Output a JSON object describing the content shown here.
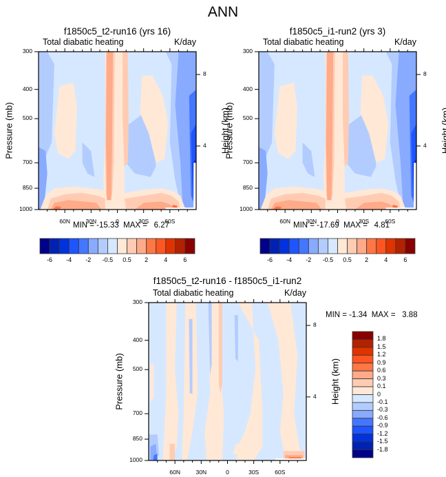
{
  "figure": {
    "title": "ANN"
  },
  "chart_data": [
    {
      "type": "heatmap",
      "panel": "top-left",
      "title": "f1850c5_t2-run16 (yrs 16)",
      "left_label": "Total diabatic heating",
      "right_label": "K/day",
      "ylabel": "Pressure (mb)",
      "ylabel_right": "Height (km)",
      "yticks": [
        "300",
        "400",
        "500",
        "700",
        "850",
        "1000"
      ],
      "ytick_values": [
        300,
        400,
        500,
        700,
        850,
        1000
      ],
      "ylim": [
        1000,
        300
      ],
      "yscale": "log",
      "height_ticks": [
        "8",
        "4"
      ],
      "height_tick_values": [
        8,
        4
      ],
      "xticks": [
        "60N",
        "30N",
        "0",
        "30S",
        "60S"
      ],
      "xtick_values": [
        60,
        30,
        0,
        -30,
        -60
      ],
      "xlim": [
        90,
        -90
      ],
      "stats": {
        "min_label": "MIN =",
        "min": "-15.33",
        "max_label": "MAX =",
        "max": "6.27"
      },
      "colorbar": {
        "orientation": "horizontal",
        "labels": [
          "-6",
          "-4",
          "-2",
          "-0.5",
          "0.5",
          "2",
          "4",
          "6"
        ]
      }
    },
    {
      "type": "heatmap",
      "panel": "top-right",
      "title": "f1850c5_i1-run2 (yrs 3)",
      "left_label": "Total diabatic heating",
      "right_label": "K/day",
      "ylabel": "Pressure (mb)",
      "ylabel_right": "Height (km)",
      "yticks": [
        "300",
        "400",
        "500",
        "700",
        "850",
        "1000"
      ],
      "ytick_values": [
        300,
        400,
        500,
        700,
        850,
        1000
      ],
      "ylim": [
        1000,
        300
      ],
      "yscale": "log",
      "height_ticks": [
        "8",
        "4"
      ],
      "height_tick_values": [
        8,
        4
      ],
      "xticks": [
        "60N",
        "30N",
        "0",
        "30S",
        "60S"
      ],
      "xtick_values": [
        60,
        30,
        0,
        -30,
        -60
      ],
      "xlim": [
        90,
        -90
      ],
      "stats": {
        "min_label": "MIN =",
        "min": "-17.69",
        "max_label": "MAX =",
        "max": "4.81"
      },
      "colorbar": {
        "orientation": "horizontal",
        "labels": [
          "-6",
          "-4",
          "-2",
          "-0.5",
          "0.5",
          "2",
          "4",
          "6"
        ]
      }
    },
    {
      "type": "heatmap",
      "panel": "bottom",
      "title": "f1850c5_t2-run16 - f1850c5_i1-run2",
      "left_label": "Total diabatic heating",
      "right_label": "K/day",
      "ylabel": "Pressure (mb)",
      "ylabel_right": "Height (km)",
      "yticks": [
        "300",
        "400",
        "500",
        "700",
        "850",
        "1000"
      ],
      "ytick_values": [
        300,
        400,
        500,
        700,
        850,
        1000
      ],
      "ylim": [
        1000,
        300
      ],
      "yscale": "log",
      "height_ticks": [
        "8",
        "4"
      ],
      "height_tick_values": [
        8,
        4
      ],
      "xticks": [
        "60N",
        "30N",
        "0",
        "30S",
        "60S"
      ],
      "xtick_values": [
        60,
        30,
        0,
        -30,
        -60
      ],
      "xlim": [
        90,
        -90
      ],
      "stats": {
        "min_label": "MIN =",
        "min": "-1.34",
        "max_label": "MAX =",
        "max": "3.88"
      },
      "colorbar": {
        "orientation": "vertical",
        "labels": [
          "1.8",
          "1.5",
          "1.2",
          "0.9",
          "0.6",
          "0.3",
          "0.1",
          "0",
          "-0.1",
          "-0.3",
          "-0.6",
          "-0.9",
          "-1.2",
          "-1.5",
          "-1.8"
        ]
      }
    }
  ],
  "palette": {
    "levels_cool_to_warm": [
      "#00008a",
      "#0022b3",
      "#0033dd",
      "#1f55ff",
      "#4477ff",
      "#88aaff",
      "#b3ccff",
      "#d6e8ff",
      "#ffe8d6",
      "#ffccb3",
      "#ffaa88",
      "#ff7744",
      "#ff5522",
      "#e03300",
      "#b32200",
      "#8a0000"
    ]
  }
}
